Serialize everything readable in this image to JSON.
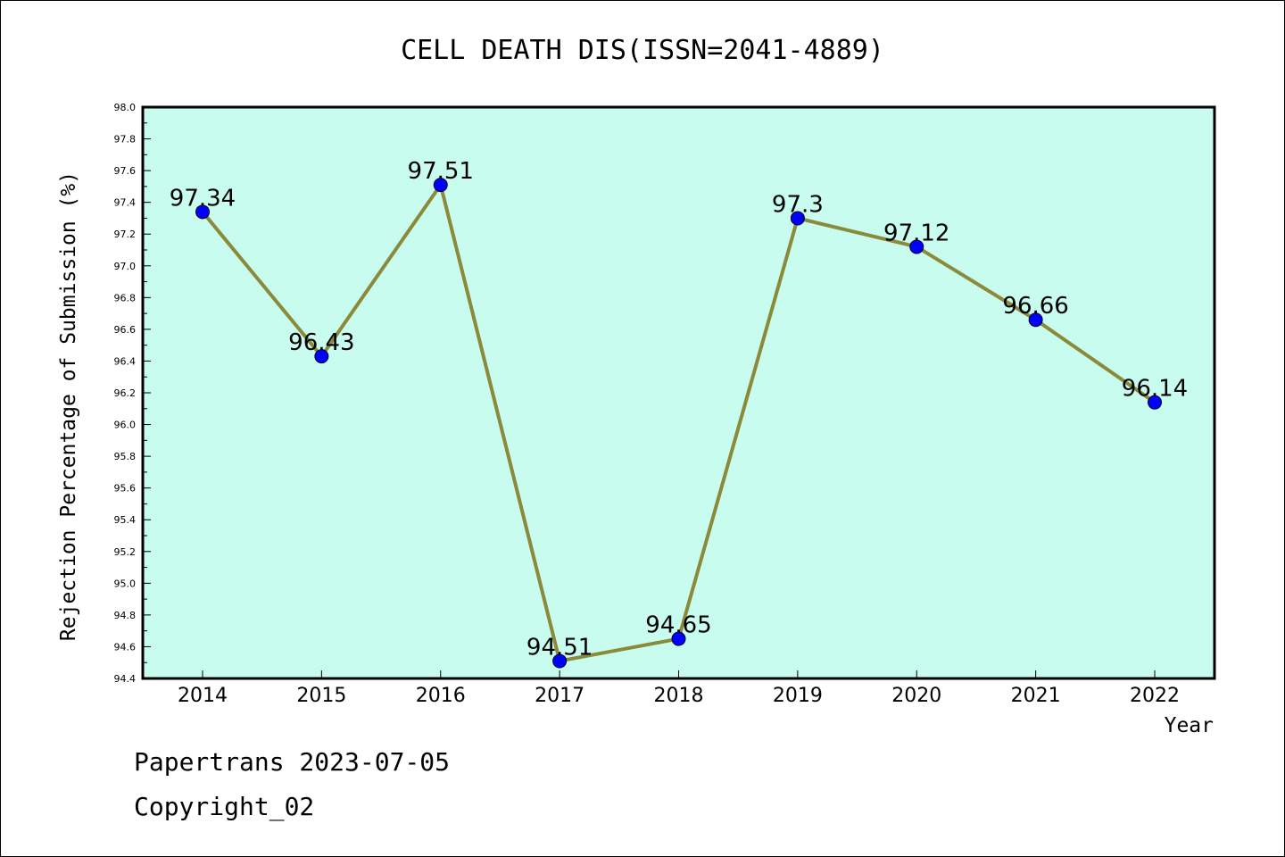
{
  "chart_data": {
    "type": "line",
    "title": "CELL DEATH DIS(ISSN=2041-4889)",
    "xlabel": "Year",
    "ylabel": "Rejection Percentage of Submission (%)",
    "x": [
      "2014",
      "2015",
      "2016",
      "2017",
      "2018",
      "2019",
      "2020",
      "2021",
      "2022"
    ],
    "series": [
      {
        "values": [
          97.34,
          96.43,
          97.51,
          94.51,
          94.65,
          97.3,
          97.12,
          96.66,
          96.14
        ],
        "labels": [
          "97.34",
          "96.43",
          "97.51",
          "94.51",
          "94.65",
          "97.3",
          "97.12",
          "96.66",
          "96.14"
        ]
      }
    ],
    "ylim": [
      94.4,
      98.0
    ],
    "yticks": [
      "94.4",
      "94.6",
      "94.8",
      "95.0",
      "95.2",
      "95.4",
      "95.6",
      "95.8",
      "96.0",
      "96.2",
      "96.4",
      "96.6",
      "96.8",
      "97.0",
      "97.2",
      "97.4",
      "97.6",
      "97.8",
      "98.0"
    ],
    "grid": false,
    "colors": {
      "plot_background": "#c8fcee",
      "line": "#8b8a3a",
      "marker": "#0000ff"
    }
  },
  "footer": {
    "line1": "Papertrans 2023-07-05",
    "line2": "Copyright_02"
  }
}
